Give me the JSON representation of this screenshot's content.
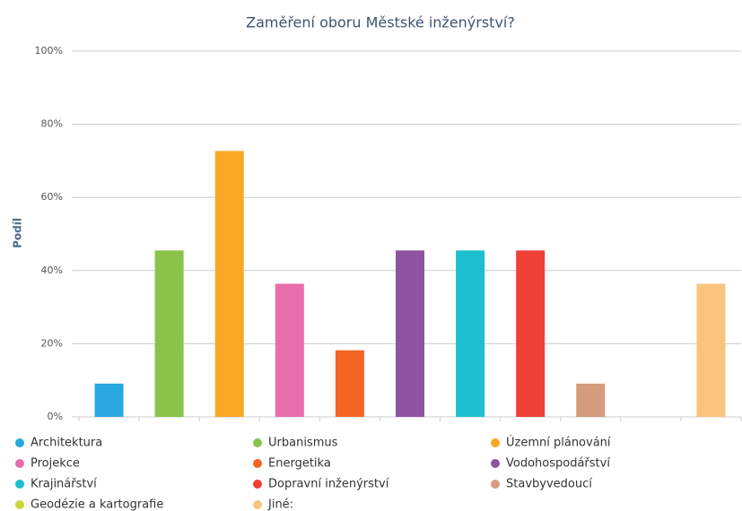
{
  "chart_data": {
    "type": "bar",
    "title": "Zaměření oboru Městské inženýrství?",
    "y_label": "Podíl",
    "categories": [
      "Architektura",
      "Urbanismus",
      "Územní plánování",
      "Projekce",
      "Energetika",
      "Vodohospodářství",
      "Krajinářství",
      "Dopravní inženýrství",
      "Stavbyvedoucí",
      "Geodézie a kartografie",
      "Jiné:"
    ],
    "values": [
      9.1,
      45.5,
      72.7,
      36.4,
      18.2,
      45.5,
      45.5,
      45.5,
      9.1,
      0,
      36.4
    ],
    "colors": [
      "#2aa8e0",
      "#8bc34a",
      "#f9a825",
      "#e86eab",
      "#f26522",
      "#8e54a1",
      "#1bbfcf",
      "#ef4036",
      "#d59b7c",
      "#c7d93a",
      "#fbc47e"
    ],
    "ylim": [
      0,
      100
    ],
    "yticks": [
      {
        "value": 0,
        "label": "0%"
      },
      {
        "value": 20,
        "label": "20%"
      },
      {
        "value": 40,
        "label": "40%"
      },
      {
        "value": 60,
        "label": "60%"
      },
      {
        "value": 80,
        "label": "80%"
      },
      {
        "value": 100,
        "label": "100%"
      }
    ],
    "grid": true
  }
}
